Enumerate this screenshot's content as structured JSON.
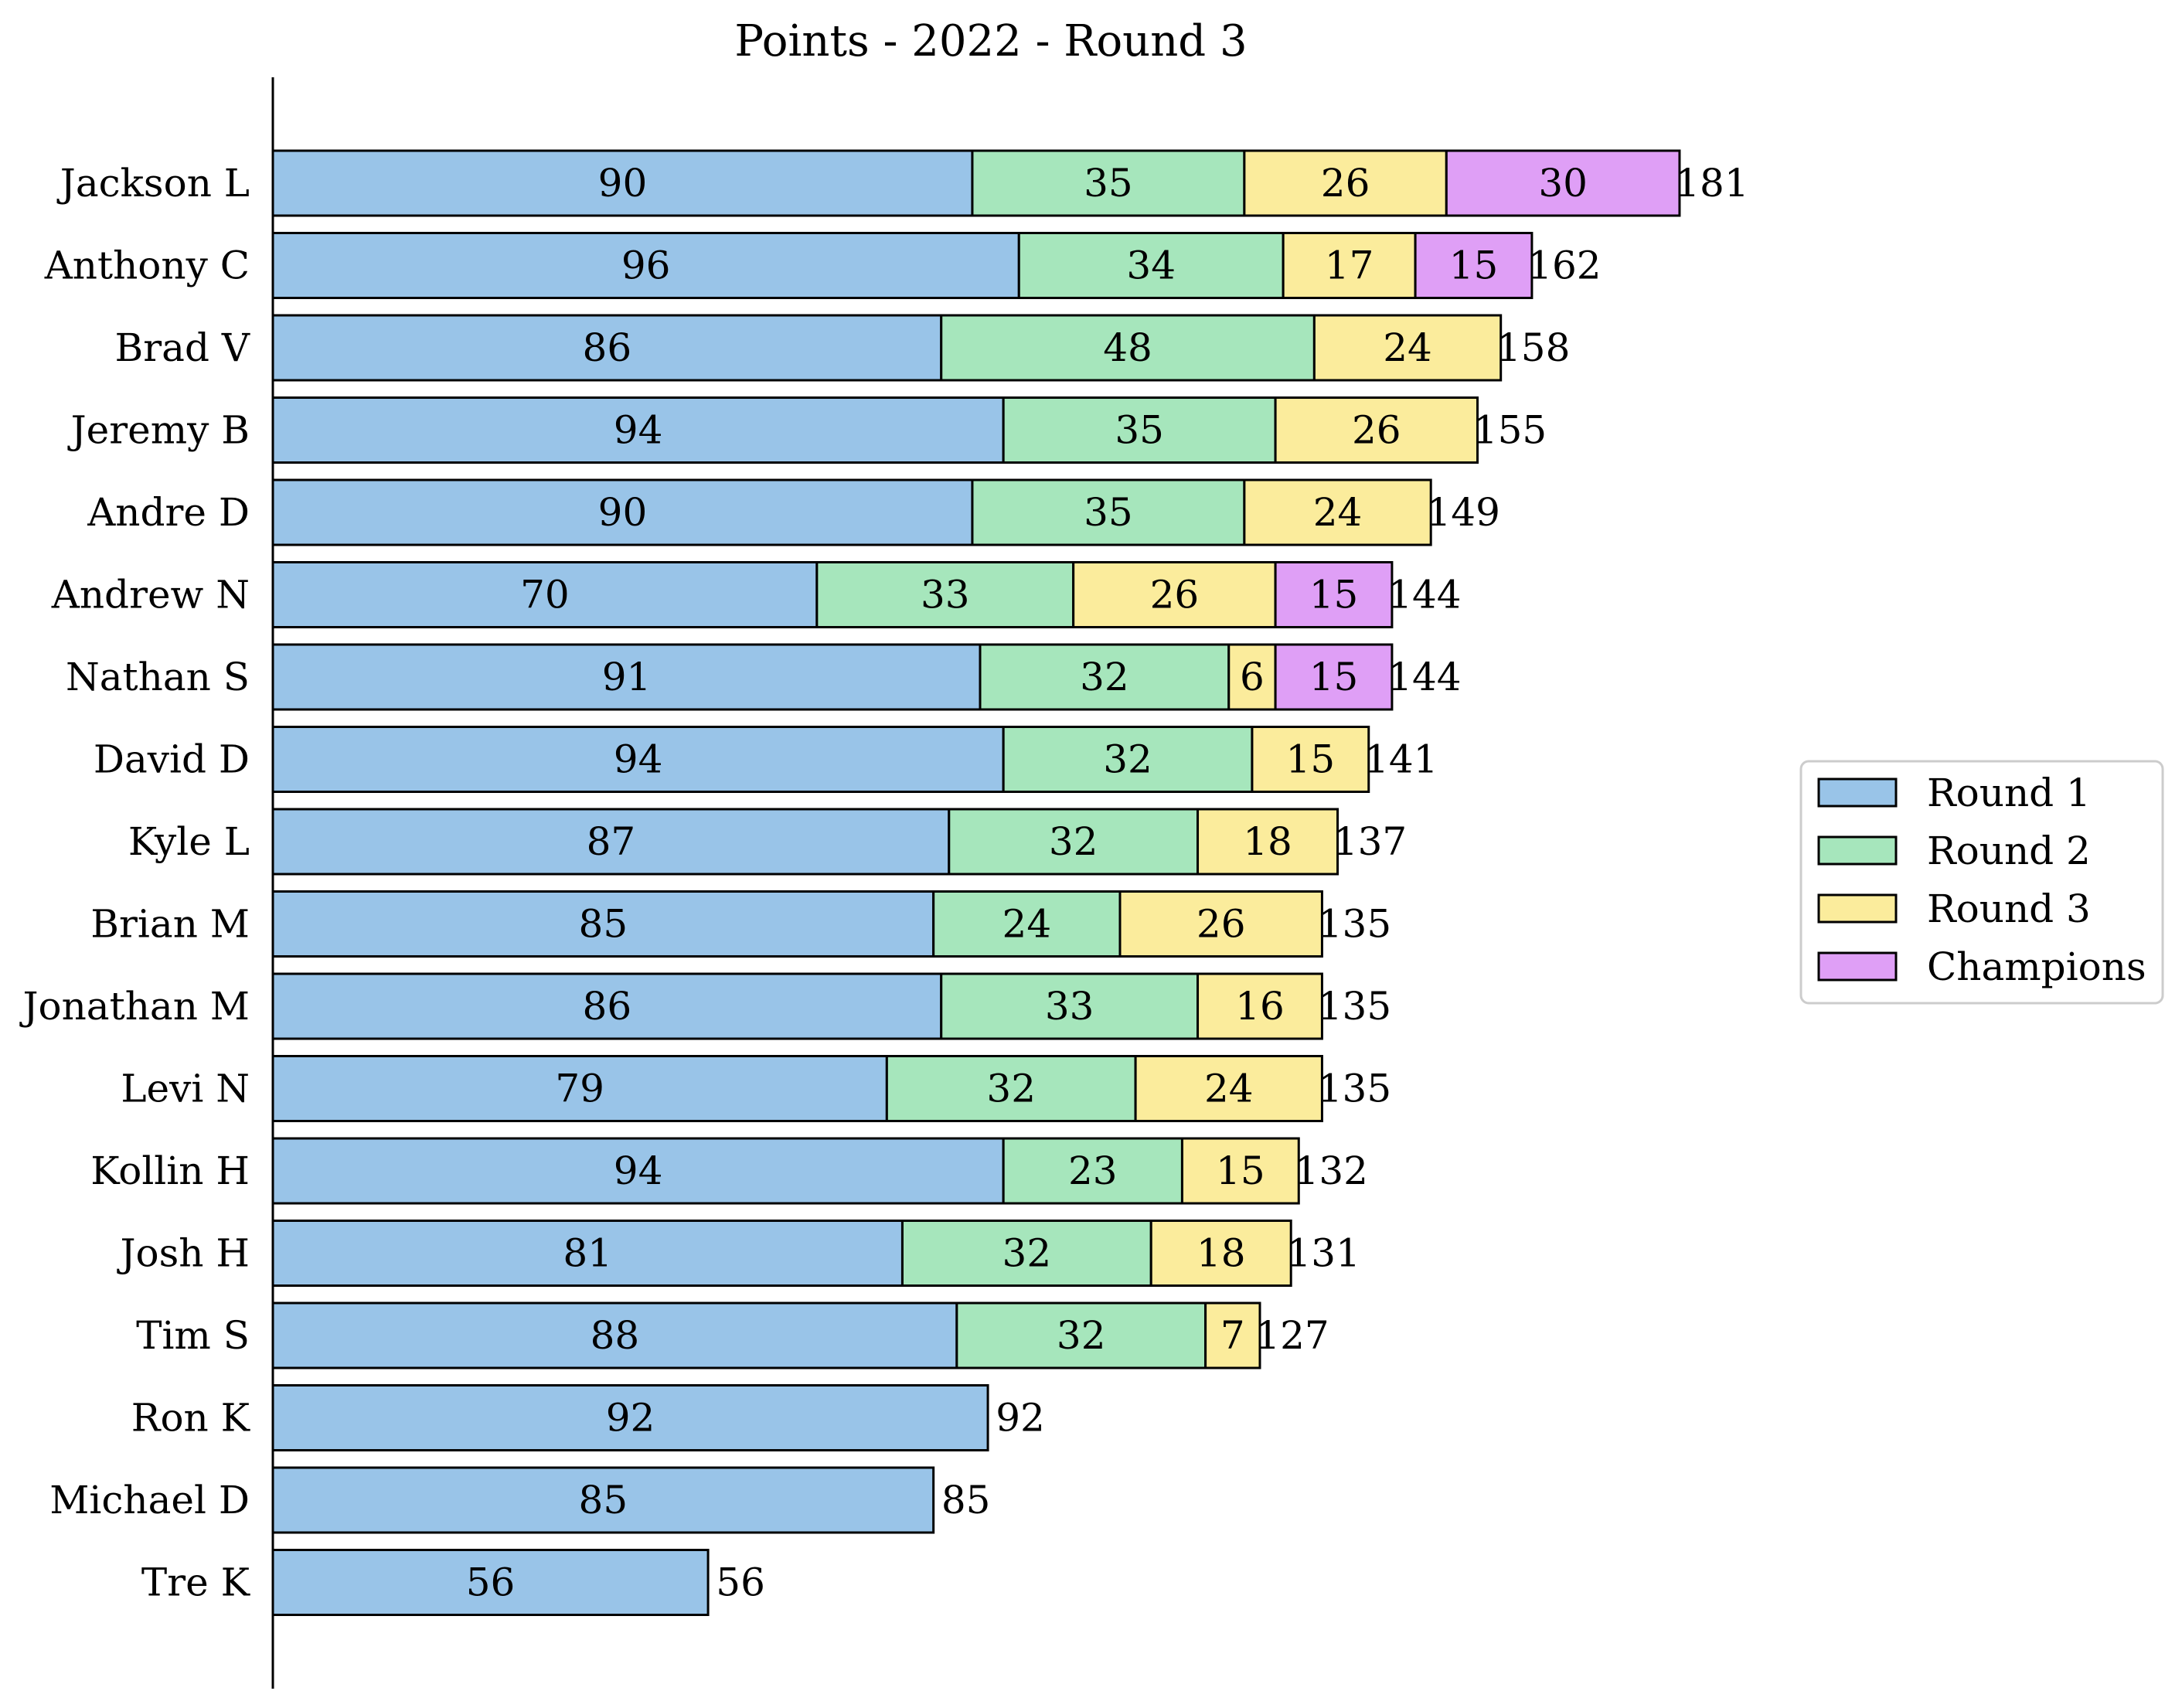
{
  "chart_data": {
    "type": "bar",
    "orientation": "horizontal",
    "stacked": true,
    "title": "Points - 2022 - Round 3",
    "xlabel": "",
    "ylabel": "",
    "categories": [
      "Jackson L",
      "Anthony C",
      "Brad V",
      "Jeremy B",
      "Andre D",
      "Andrew N",
      "Nathan S",
      "David D",
      "Kyle L",
      "Brian M",
      "Jonathan M",
      "Levi N",
      "Kollin H",
      "Josh H",
      "Tim S",
      "Ron K",
      "Michael D",
      "Tre K"
    ],
    "series": [
      {
        "name": "Round 1",
        "color": "#99c4e8",
        "values": [
          90,
          96,
          86,
          94,
          90,
          70,
          91,
          94,
          87,
          85,
          86,
          79,
          94,
          81,
          88,
          92,
          85,
          56
        ]
      },
      {
        "name": "Round 2",
        "color": "#a6e6bc",
        "values": [
          35,
          34,
          48,
          35,
          35,
          33,
          32,
          32,
          32,
          24,
          33,
          32,
          23,
          32,
          32,
          0,
          0,
          0
        ]
      },
      {
        "name": "Round 3",
        "color": "#fbec9c",
        "values": [
          26,
          17,
          24,
          26,
          24,
          26,
          6,
          15,
          18,
          26,
          16,
          24,
          15,
          18,
          7,
          0,
          0,
          0
        ]
      },
      {
        "name": "Champions",
        "color": "#df9ff6",
        "values": [
          30,
          15,
          0,
          0,
          0,
          15,
          15,
          0,
          0,
          0,
          0,
          0,
          0,
          0,
          0,
          0,
          0,
          0
        ]
      }
    ],
    "totals": [
      181,
      162,
      158,
      155,
      149,
      144,
      144,
      141,
      137,
      135,
      135,
      135,
      132,
      131,
      127,
      92,
      85,
      56
    ],
    "xlim": [
      0,
      200
    ],
    "grid": false,
    "legend_position": "center-right",
    "edge_color": "#000000"
  }
}
